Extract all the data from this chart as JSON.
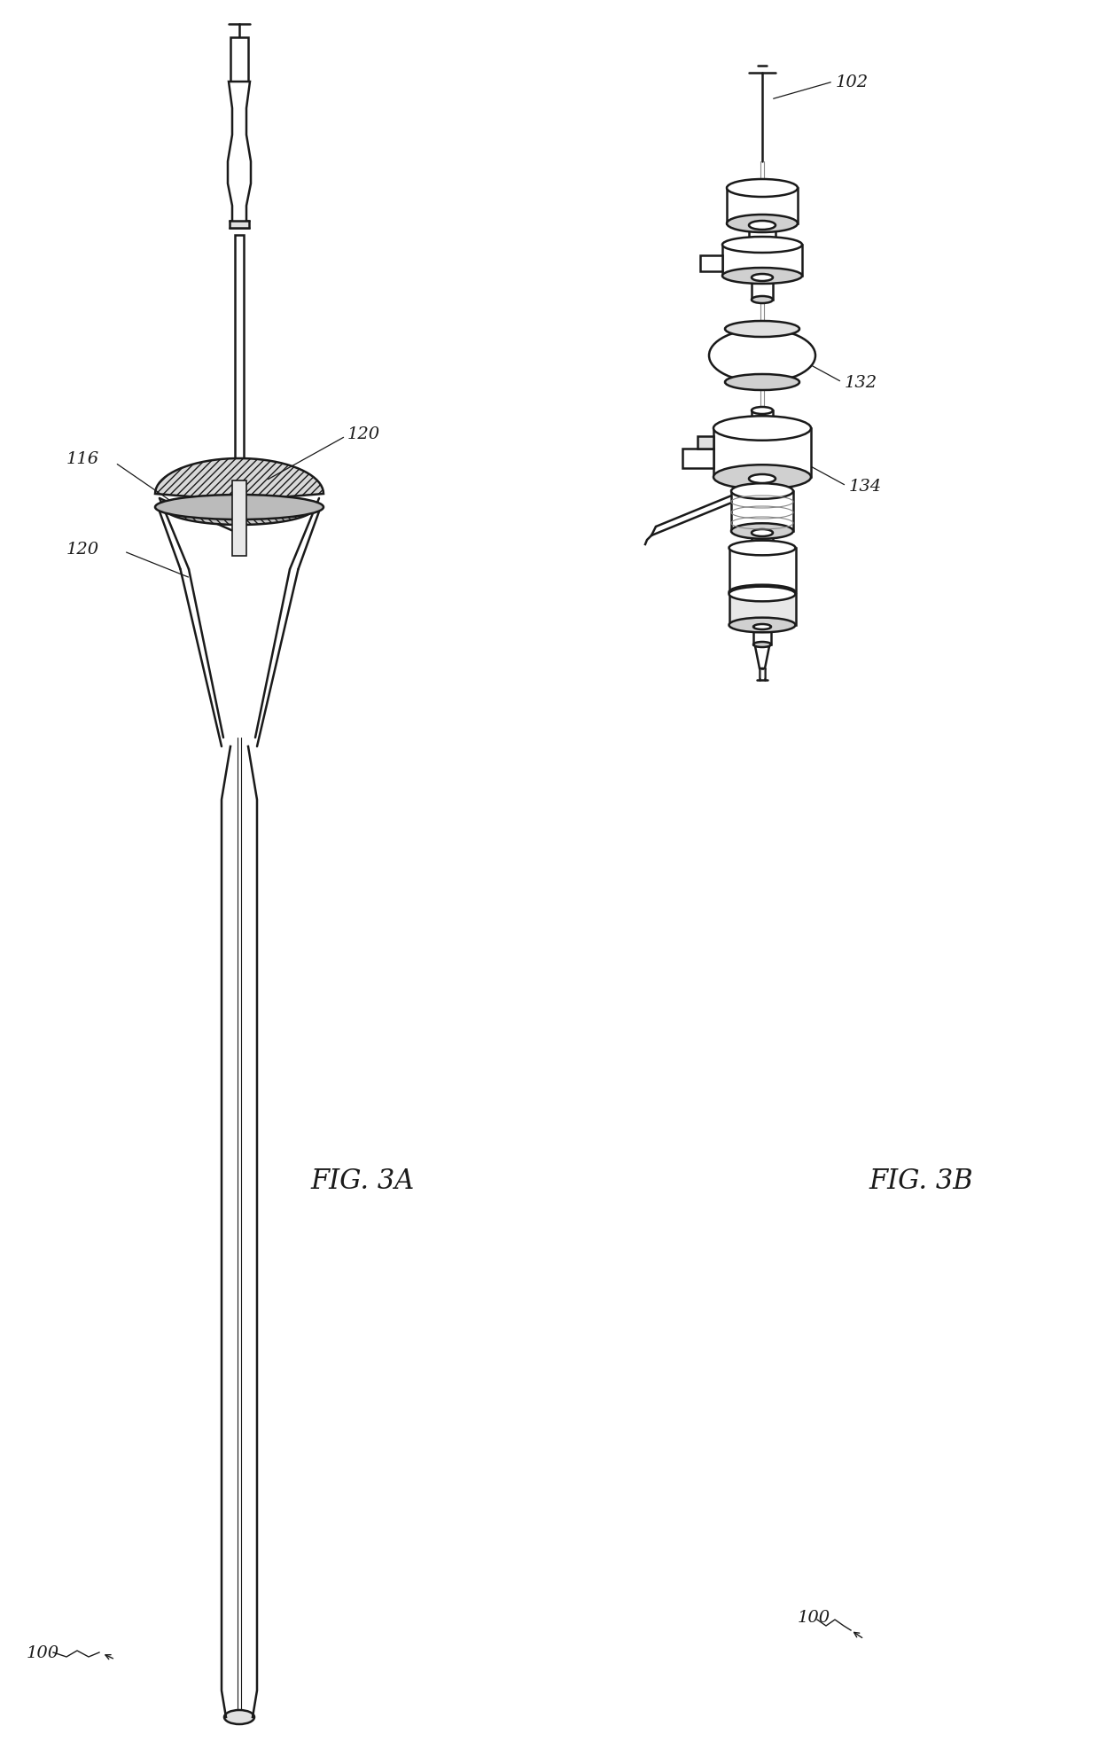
{
  "background_color": "#ffffff",
  "line_color": "#1a1a1a",
  "light_gray": "#cccccc",
  "mid_gray": "#888888",
  "dark_gray": "#555555",
  "hatch_color": "#999999",
  "fig_3a_label": "FIG. 3A",
  "fig_3b_label": "FIG. 3B",
  "label_100_left": "100",
  "label_100_right": "100",
  "label_116": "116",
  "label_120_top": "120",
  "label_120_mid": "120",
  "label_102": "102",
  "label_132": "132",
  "label_134": "134",
  "fig_width": 12.4,
  "fig_height": 19.83
}
